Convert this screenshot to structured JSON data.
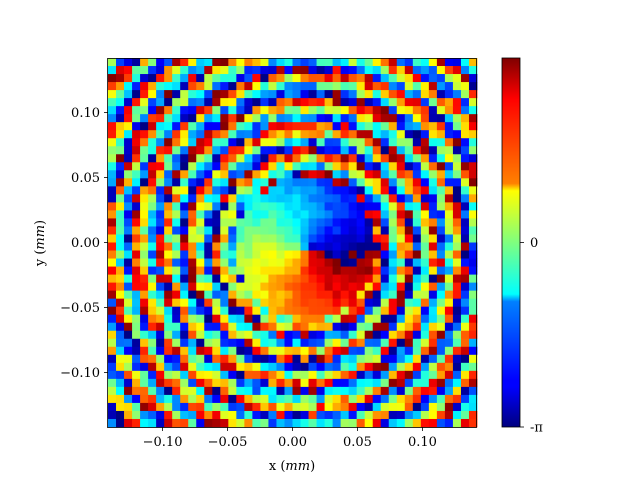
{
  "chart_data": {
    "type": "heatmap",
    "title": "",
    "xlabel_text": "x (",
    "xlabel_unit": "mm",
    "xlabel_close": ")",
    "ylabel_text": "y (",
    "ylabel_unit": "mm",
    "ylabel_close": ")",
    "xlim": [
      -0.142,
      0.142
    ],
    "ylim": [
      -0.142,
      0.142
    ],
    "grid": false,
    "colormap": "jet",
    "x_ticks": [
      {
        "value": -0.1,
        "label": "−0.10"
      },
      {
        "value": -0.05,
        "label": "−0.05"
      },
      {
        "value": 0.0,
        "label": "0.00"
      },
      {
        "value": 0.05,
        "label": "0.05"
      },
      {
        "value": 0.1,
        "label": "0.10"
      }
    ],
    "y_ticks": [
      {
        "value": 0.1,
        "label": "0.10"
      },
      {
        "value": 0.05,
        "label": "0.05"
      },
      {
        "value": 0.0,
        "label": "0.00"
      },
      {
        "value": -0.05,
        "label": "−0.05"
      },
      {
        "value": -0.1,
        "label": "−0.10"
      }
    ],
    "colorbar": {
      "range": [
        -3.14159,
        3.14159
      ],
      "ticks": [
        {
          "value": 0,
          "label": "0"
        },
        {
          "value": -3.14159,
          "label": "-π"
        }
      ]
    },
    "grid_size": 46,
    "pattern": {
      "description": "wrapped phase of a spiral vortex beam with concentric ring fringes and pixel noise",
      "vortex_center": [
        0.01,
        -0.005
      ],
      "core_radius_mm": 0.055,
      "ring_period_mm": 0.0205,
      "topological_charge": 1
    }
  }
}
